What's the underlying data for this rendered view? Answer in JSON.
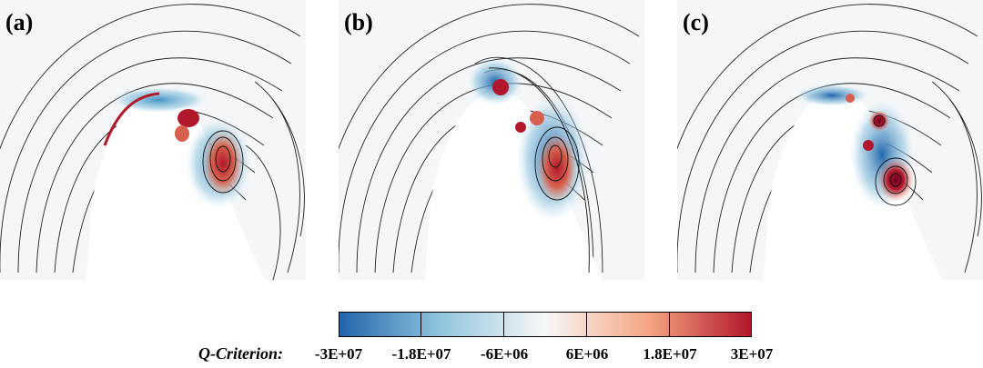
{
  "panels": [
    {
      "label": "(a)"
    },
    {
      "label": "(b)"
    },
    {
      "label": "(c)"
    }
  ],
  "colorbar": {
    "title": "Q-Criterion:",
    "ticks": [
      "-3E+07",
      "-1.8E+07",
      "-6E+06",
      "6E+06",
      "1.8E+07",
      "3E+07"
    ],
    "colors": [
      "#2166ac",
      "#92c5de",
      "#f7f7f7",
      "#f4a582",
      "#b2182b"
    ]
  }
}
